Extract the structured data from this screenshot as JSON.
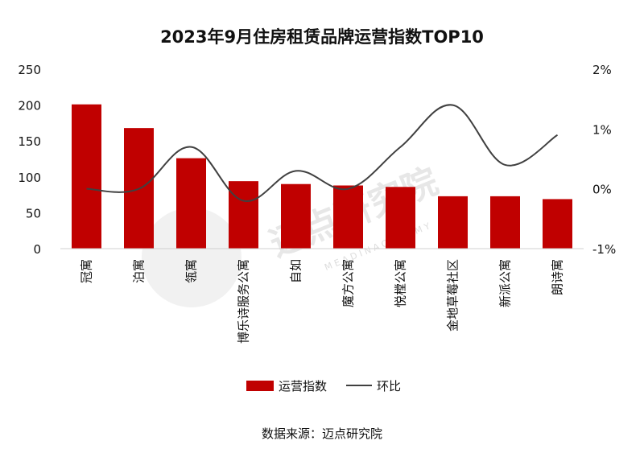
{
  "chart_data": {
    "type": "bar",
    "title": "2023年9月住房租赁品牌运营指数TOP10",
    "categories": [
      "冠寓",
      "泊寓",
      "瓴寓",
      "博乐诗服务公寓",
      "自如",
      "魔方公寓",
      "悦樘公寓",
      "金地草莓社区",
      "新派公寓",
      "朗诗寓"
    ],
    "series": [
      {
        "name": "运营指数",
        "type": "bar",
        "axis": "left",
        "color": "#c00000",
        "values": [
          201,
          168,
          126,
          94,
          90,
          88,
          86,
          73,
          73,
          69
        ]
      },
      {
        "name": "环比",
        "type": "line",
        "axis": "right",
        "unit": "%",
        "color": "#404040",
        "values": [
          0.0,
          0.0,
          0.7,
          -0.2,
          0.3,
          0.0,
          0.7,
          1.4,
          0.4,
          0.9
        ]
      }
    ],
    "y_left": {
      "min": 0,
      "max": 250,
      "ticks": [
        0,
        50,
        100,
        150,
        200,
        250
      ],
      "tick_labels": [
        "0",
        "50",
        "100",
        "150",
        "200",
        "250"
      ]
    },
    "y_right": {
      "min": -1,
      "max": 2,
      "ticks": [
        -1,
        0,
        1,
        2
      ],
      "tick_labels": [
        "-1%",
        "0%",
        "1%",
        "2%"
      ]
    },
    "legend": {
      "position": "bottom",
      "items": [
        "运营指数",
        "环比"
      ]
    },
    "source": "数据来源：迈点研究院",
    "watermark": {
      "text": "迈点研究院",
      "subtext": "M E A D I N  A C A D E M Y"
    }
  }
}
